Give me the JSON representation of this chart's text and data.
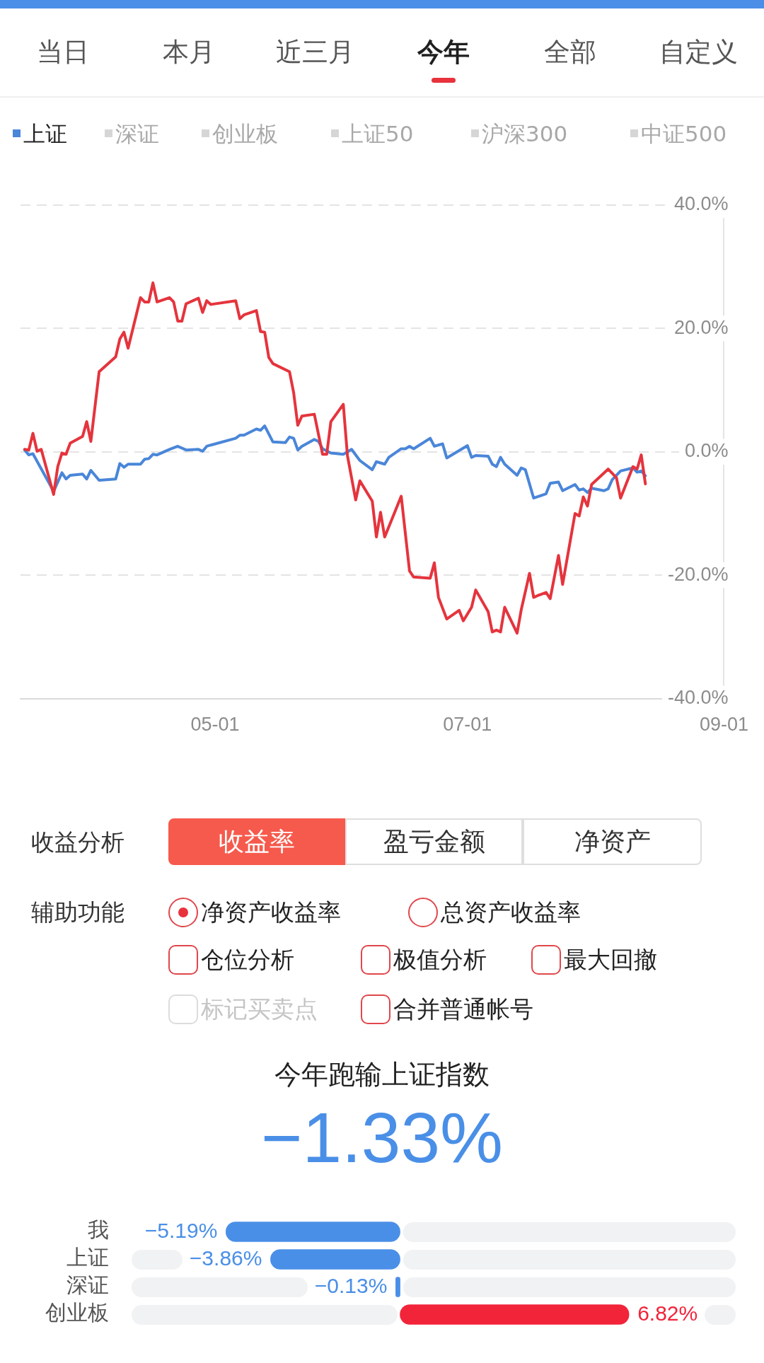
{
  "chart_data": [
    {
      "type": "line",
      "annotations": [
        "当日",
        "本月",
        "近三月",
        "今年",
        "全部",
        "自定义",
        "深证",
        "创业板",
        "上证50",
        "沪深300",
        "中证500",
        "收益分析",
        "收益率",
        "盈亏金额",
        "净资产",
        "辅助功能",
        "净资产收益率",
        "总资产收益率",
        "仓位分析",
        "极值分析",
        "最大回撤",
        "标记买卖点",
        "合并普通帐号"
      ],
      "xlim": [
        "--03-15",
        "--09-01"
      ],
      "xticks": [
        {
          "value": "--05-01",
          "label": "05-01"
        },
        {
          "value": "--07-01",
          "label": "07-01"
        },
        {
          "value": "--09-01",
          "label": "09-01"
        }
      ],
      "ylim": [
        -40,
        40
      ],
      "yticks": [
        {
          "value": -40,
          "label": "-40.0%"
        },
        {
          "value": -20,
          "label": "-20.0%"
        },
        {
          "value": 0,
          "label": "0.0%"
        },
        {
          "value": 20,
          "label": "20.0%"
        },
        {
          "value": 40,
          "label": "40.0%"
        }
      ],
      "grid": "y",
      "legend": "top left",
      "series": [
        {
          "color": "#e5343d",
          "x": [
            "--03-16",
            "--03-17",
            "--03-18",
            "--03-19",
            "--03-20",
            "--03-23",
            "--03-24",
            "--03-25",
            "--03-26",
            "--03-27",
            "--03-30",
            "--03-31",
            "--04-01",
            "--04-03",
            "--04-07",
            "--04-08",
            "--04-09",
            "--04-10",
            "--04-13",
            "--04-14",
            "--04-15",
            "--04-16",
            "--04-17",
            "--04-20",
            "--04-21",
            "--04-22",
            "--04-23",
            "--04-24",
            "--04-27",
            "--04-28",
            "--04-29",
            "--04-30",
            "--05-06",
            "--05-07",
            "--05-08",
            "--05-11",
            "--05-12",
            "--05-13",
            "--05-14",
            "--05-15",
            "--05-19",
            "--05-20",
            "--05-21",
            "--05-22",
            "--05-25",
            "--05-27",
            "--05-28",
            "--05-29",
            "--06-01",
            "--06-02",
            "--06-04",
            "--06-05",
            "--06-08",
            "--06-09",
            "--06-10",
            "--06-11",
            "--06-15",
            "--06-17",
            "--06-18",
            "--06-22",
            "--06-23",
            "--06-24",
            "--06-26",
            "--06-29",
            "--06-30",
            "--07-02",
            "--07-03",
            "--07-06",
            "--07-07",
            "--07-08",
            "--07-09",
            "--07-10",
            "--07-13",
            "--07-14",
            "--07-16",
            "--07-17",
            "--07-18",
            "--07-20",
            "--07-21",
            "--07-23",
            "--07-24",
            "--07-27",
            "--07-28",
            "--07-29",
            "--07-30",
            "--07-31",
            "--08-04",
            "--08-06",
            "--08-07",
            "--08-10",
            "--08-11",
            "--08-12",
            "--08-13"
          ],
          "values": [
            0.4,
            0.3,
            3.0,
            0.1,
            0.4,
            -6.9,
            -2.4,
            -0.2,
            -0.4,
            1.4,
            2.5,
            4.9,
            1.7,
            13.0,
            15.4,
            18.3,
            19.4,
            16.8,
            25.0,
            24.3,
            24.3,
            27.4,
            24.3,
            25.0,
            24.3,
            21.2,
            21.2,
            24.0,
            24.9,
            22.6,
            24.5,
            23.9,
            24.5,
            21.6,
            22.2,
            22.9,
            19.5,
            19.4,
            15.3,
            14.3,
            13.0,
            9.6,
            4.3,
            5.8,
            6.1,
            -0.4,
            -0.4,
            4.9,
            7.7,
            -0.6,
            -7.8,
            -4.7,
            -8.0,
            -13.8,
            -9.8,
            -13.8,
            -7.2,
            -19.3,
            -20.3,
            -20.5,
            -18.0,
            -23.6,
            -27.1,
            -25.7,
            -27.4,
            -25.2,
            -22.4,
            -25.9,
            -29.2,
            -28.9,
            -29.2,
            -25.2,
            -29.4,
            -25.6,
            -19.7,
            -23.6,
            -23.3,
            -22.8,
            -23.8,
            -16.8,
            -21.5,
            -10.0,
            -10.4,
            -7.3,
            -8.8,
            -5.3,
            -2.8,
            -4.2,
            -7.5,
            -2.4,
            -2.8,
            -0.5,
            -5.2
          ]
        },
        {
          "name": "上证",
          "color": "#4a86d9",
          "x": [
            "--03-16",
            "--03-17",
            "--03-18",
            "--03-23",
            "--03-25",
            "--03-26",
            "--03-27",
            "--03-30",
            "--03-31",
            "--04-01",
            "--04-03",
            "--04-07",
            "--04-08",
            "--04-09",
            "--04-10",
            "--04-13",
            "--04-14",
            "--04-15",
            "--04-16",
            "--04-17",
            "--04-20",
            "--04-22",
            "--04-24",
            "--04-27",
            "--04-28",
            "--04-29",
            "--04-30",
            "--05-06",
            "--05-07",
            "--05-08",
            "--05-11",
            "--05-12",
            "--05-13",
            "--05-15",
            "--05-18",
            "--05-19",
            "--05-20",
            "--05-21",
            "--05-22",
            "--05-25",
            "--05-26",
            "--05-27",
            "--05-29",
            "--06-01",
            "--06-03",
            "--06-05",
            "--06-08",
            "--06-09",
            "--06-11",
            "--06-12",
            "--06-15",
            "--06-16",
            "--06-17",
            "--06-18",
            "--06-22",
            "--06-23",
            "--06-25",
            "--06-26",
            "--07-01",
            "--07-02",
            "--07-03",
            "--07-06",
            "--07-07",
            "--07-08",
            "--07-09",
            "--07-10",
            "--07-13",
            "--07-14",
            "--07-15",
            "--07-17",
            "--07-20",
            "--07-21",
            "--07-23",
            "--07-24",
            "--07-27",
            "--07-28",
            "--07-29",
            "--07-30",
            "--07-31",
            "--08-03",
            "--08-04",
            "--08-05",
            "--08-07",
            "--08-10",
            "--08-11",
            "--08-12",
            "--08-13"
          ],
          "values": [
            0.3,
            -0.5,
            -0.3,
            -6.4,
            -3.4,
            -4.4,
            -3.8,
            -3.6,
            -4.4,
            -3.0,
            -4.6,
            -4.4,
            -1.9,
            -2.5,
            -2.0,
            -2.0,
            -1.2,
            -1.1,
            -0.4,
            -0.5,
            0.4,
            0.9,
            0.3,
            0.4,
            0.1,
            0.9,
            1.1,
            2.2,
            2.7,
            2.7,
            3.7,
            3.5,
            4.2,
            1.6,
            1.5,
            2.4,
            2.2,
            0.3,
            0.9,
            2.0,
            1.7,
            0.5,
            -0.2,
            -0.4,
            0.4,
            -1.4,
            -2.9,
            -1.6,
            -2.0,
            -0.9,
            0.5,
            0.5,
            0.9,
            0.5,
            2.2,
            0.9,
            1.3,
            -1.0,
            1.0,
            -0.9,
            -0.6,
            -0.7,
            -2.0,
            -2.4,
            -0.9,
            -2.0,
            -3.8,
            -2.6,
            -2.9,
            -7.5,
            -6.8,
            -5.1,
            -4.9,
            -6.3,
            -5.3,
            -6.2,
            -6.0,
            -6.6,
            -5.9,
            -6.3,
            -6.0,
            -4.5,
            -3.1,
            -2.6,
            -3.3,
            -3.1,
            -3.9
          ]
        }
      ]
    },
    {
      "type": "bar",
      "orientation": "horizontal",
      "tick_labels": "y",
      "title": "今年跑输上证指数",
      "subtitle": "−1.33%",
      "categories": [
        "我",
        "上证",
        "深证",
        "创业板"
      ],
      "values": [
        -5.19,
        -3.86,
        -0.13,
        6.82
      ],
      "colors": [
        "#4a8fe7",
        "#4a8fe7",
        "#4a8fe7",
        "#f2243a"
      ],
      "value_labels": [
        "−5.19%",
        "−3.86%",
        "−0.13%",
        "6.82%"
      ]
    }
  ]
}
